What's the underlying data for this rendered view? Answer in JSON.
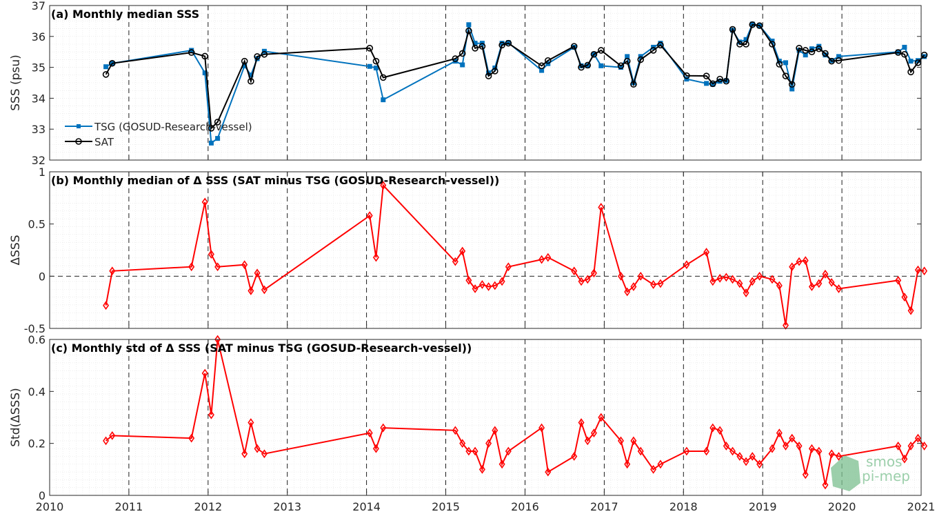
{
  "chart_data": [
    {
      "type": "line",
      "title": "(a) Monthly median SSS",
      "xlabel": "",
      "ylabel": "SSS (psu)",
      "xlim": [
        2010,
        2021
      ],
      "ylim": [
        32,
        37
      ],
      "yticks": [
        "32",
        "33",
        "34",
        "35",
        "36",
        "37"
      ],
      "grid": true,
      "legend_position": "lower-left",
      "series": [
        {
          "name": "TSG (GOSUD-Research-vessel)",
          "color": "#0072bd",
          "marker": "square",
          "x": [
            2010.71,
            2010.79,
            2011.79,
            2011.96,
            2012.04,
            2012.12,
            2012.46,
            2012.54,
            2012.62,
            2012.71,
            2014.04,
            2014.12,
            2014.21,
            2015.12,
            2015.21,
            2015.29,
            2015.37,
            2015.46,
            2015.54,
            2015.62,
            2015.71,
            2015.79,
            2016.21,
            2016.29,
            2016.62,
            2016.71,
            2016.79,
            2016.87,
            2016.96,
            2017.21,
            2017.29,
            2017.37,
            2017.46,
            2017.62,
            2017.71,
            2018.04,
            2018.29,
            2018.37,
            2018.46,
            2018.54,
            2018.62,
            2018.71,
            2018.79,
            2018.87,
            2018.96,
            2019.12,
            2019.21,
            2019.29,
            2019.37,
            2019.46,
            2019.54,
            2019.62,
            2019.71,
            2019.79,
            2019.87,
            2019.96,
            2020.71,
            2020.79,
            2020.87,
            2020.96,
            2021.04
          ],
          "y": [
            35.02,
            35.13,
            35.55,
            34.82,
            32.55,
            32.7,
            35.05,
            34.75,
            35.28,
            35.52,
            35.03,
            34.98,
            33.95,
            35.2,
            35.08,
            36.38,
            35.78,
            35.78,
            34.82,
            34.98,
            35.78,
            35.8,
            34.9,
            35.12,
            35.65,
            35.05,
            35.05,
            35.43,
            35.05,
            35.0,
            35.35,
            34.5,
            35.35,
            35.65,
            35.78,
            34.62,
            34.48,
            34.45,
            34.55,
            34.57,
            36.2,
            35.82,
            35.9,
            36.4,
            36.35,
            35.85,
            35.2,
            35.15,
            34.3,
            35.55,
            35.4,
            35.6,
            35.68,
            35.4,
            35.22,
            35.35,
            35.5,
            35.65,
            35.2,
            35.22,
            35.35
          ]
        },
        {
          "name": "SAT",
          "color": "#000000",
          "marker": "circle",
          "x": [
            2010.71,
            2010.79,
            2011.79,
            2011.96,
            2012.04,
            2012.12,
            2012.46,
            2012.54,
            2012.62,
            2012.71,
            2014.04,
            2014.12,
            2014.21,
            2015.12,
            2015.21,
            2015.29,
            2015.37,
            2015.46,
            2015.54,
            2015.62,
            2015.71,
            2015.79,
            2016.21,
            2016.29,
            2016.62,
            2016.71,
            2016.79,
            2016.87,
            2016.96,
            2017.21,
            2017.29,
            2017.37,
            2017.46,
            2017.62,
            2017.71,
            2018.04,
            2018.29,
            2018.37,
            2018.46,
            2018.54,
            2018.62,
            2018.71,
            2018.79,
            2018.87,
            2018.96,
            2019.12,
            2019.21,
            2019.29,
            2019.37,
            2019.46,
            2019.54,
            2019.62,
            2019.71,
            2019.79,
            2019.87,
            2019.96,
            2020.71,
            2020.79,
            2020.87,
            2020.96,
            2021.04
          ],
          "y": [
            34.77,
            35.13,
            35.48,
            35.36,
            33.03,
            33.23,
            35.2,
            34.55,
            35.35,
            35.42,
            35.62,
            35.2,
            34.67,
            35.28,
            35.45,
            36.18,
            35.62,
            35.68,
            34.72,
            34.88,
            35.72,
            35.78,
            35.05,
            35.22,
            35.68,
            35.0,
            35.07,
            35.42,
            35.55,
            35.05,
            35.2,
            34.45,
            35.25,
            35.55,
            35.72,
            34.73,
            34.72,
            34.47,
            34.62,
            34.55,
            36.23,
            35.75,
            35.75,
            36.38,
            36.35,
            35.75,
            35.1,
            34.72,
            34.45,
            35.62,
            35.55,
            35.5,
            35.6,
            35.45,
            35.2,
            35.22,
            35.48,
            35.42,
            34.85,
            35.15,
            35.4
          ]
        }
      ]
    },
    {
      "type": "line",
      "title": "(b) Monthly median of Δ SSS (SAT minus TSG (GOSUD-Research-vessel))",
      "xlabel": "",
      "ylabel": "ΔSSS",
      "xlim": [
        2010,
        2021
      ],
      "ylim": [
        -0.5,
        1
      ],
      "yticks": [
        "-0.5",
        "0",
        "0.5",
        "1"
      ],
      "grid": true,
      "series": [
        {
          "name": "",
          "color": "#ff0000",
          "marker": "diamond",
          "x": [
            2010.71,
            2010.79,
            2011.79,
            2011.96,
            2012.04,
            2012.12,
            2012.46,
            2012.54,
            2012.62,
            2012.71,
            2014.04,
            2014.12,
            2014.21,
            2015.12,
            2015.21,
            2015.29,
            2015.37,
            2015.46,
            2015.54,
            2015.62,
            2015.71,
            2015.79,
            2016.21,
            2016.29,
            2016.62,
            2016.71,
            2016.79,
            2016.87,
            2016.96,
            2017.21,
            2017.29,
            2017.37,
            2017.46,
            2017.62,
            2017.71,
            2018.04,
            2018.29,
            2018.37,
            2018.46,
            2018.54,
            2018.62,
            2018.71,
            2018.79,
            2018.87,
            2018.96,
            2019.12,
            2019.21,
            2019.29,
            2019.37,
            2019.46,
            2019.54,
            2019.62,
            2019.71,
            2019.79,
            2019.87,
            2019.96,
            2020.71,
            2020.79,
            2020.87,
            2020.96,
            2021.04
          ],
          "y": [
            -0.28,
            0.05,
            0.09,
            0.71,
            0.21,
            0.09,
            0.11,
            -0.14,
            0.03,
            -0.13,
            0.58,
            0.18,
            0.87,
            0.14,
            0.24,
            -0.04,
            -0.12,
            -0.08,
            -0.1,
            -0.09,
            -0.05,
            0.09,
            0.16,
            0.18,
            0.05,
            -0.05,
            -0.03,
            0.03,
            0.66,
            0.0,
            -0.15,
            -0.1,
            0.0,
            -0.08,
            -0.07,
            0.11,
            0.23,
            -0.05,
            -0.02,
            -0.01,
            -0.03,
            -0.07,
            -0.16,
            -0.05,
            0.0,
            -0.03,
            -0.09,
            -0.47,
            0.09,
            0.14,
            0.15,
            -0.1,
            -0.07,
            0.02,
            -0.06,
            -0.12,
            -0.04,
            -0.2,
            -0.33,
            0.06,
            0.05
          ]
        }
      ]
    },
    {
      "type": "line",
      "title": "(c) Monthly std of Δ SSS (SAT minus TSG (GOSUD-Research-vessel))",
      "xlabel": "",
      "ylabel": "Std(ΔSSS)",
      "xlim": [
        2010,
        2021
      ],
      "ylim": [
        0,
        0.6
      ],
      "yticks": [
        "0",
        "0.2",
        "0.4",
        "0.6"
      ],
      "xticks": [
        "2010",
        "2011",
        "2012",
        "2013",
        "2014",
        "2015",
        "2016",
        "2017",
        "2018",
        "2019",
        "2020",
        "2021"
      ],
      "grid": true,
      "series": [
        {
          "name": "",
          "color": "#ff0000",
          "marker": "diamond",
          "x": [
            2010.71,
            2010.79,
            2011.79,
            2011.96,
            2012.04,
            2012.12,
            2012.46,
            2012.54,
            2012.62,
            2012.71,
            2014.04,
            2014.12,
            2014.21,
            2015.12,
            2015.21,
            2015.29,
            2015.37,
            2015.46,
            2015.54,
            2015.62,
            2015.71,
            2015.79,
            2016.21,
            2016.29,
            2016.62,
            2016.71,
            2016.79,
            2016.87,
            2016.96,
            2017.21,
            2017.29,
            2017.37,
            2017.46,
            2017.62,
            2017.71,
            2018.04,
            2018.29,
            2018.37,
            2018.46,
            2018.54,
            2018.62,
            2018.71,
            2018.79,
            2018.87,
            2018.96,
            2019.12,
            2019.21,
            2019.29,
            2019.37,
            2019.46,
            2019.54,
            2019.62,
            2019.71,
            2019.79,
            2019.87,
            2019.96,
            2020.71,
            2020.79,
            2020.87,
            2020.96,
            2021.04
          ],
          "y": [
            0.21,
            0.23,
            0.22,
            0.47,
            0.31,
            0.6,
            0.16,
            0.28,
            0.18,
            0.16,
            0.24,
            0.18,
            0.26,
            0.25,
            0.2,
            0.17,
            0.17,
            0.1,
            0.2,
            0.25,
            0.12,
            0.17,
            0.26,
            0.09,
            0.15,
            0.28,
            0.21,
            0.24,
            0.3,
            0.21,
            0.12,
            0.21,
            0.17,
            0.1,
            0.12,
            0.17,
            0.17,
            0.26,
            0.25,
            0.19,
            0.17,
            0.15,
            0.13,
            0.15,
            0.12,
            0.18,
            0.24,
            0.19,
            0.22,
            0.19,
            0.08,
            0.18,
            0.17,
            0.04,
            0.16,
            0.15,
            0.19,
            0.14,
            0.19,
            0.22,
            0.19
          ]
        }
      ]
    }
  ],
  "logo": {
    "line1": "smos",
    "line2": "pi-mep",
    "color": "#7cc08f"
  }
}
